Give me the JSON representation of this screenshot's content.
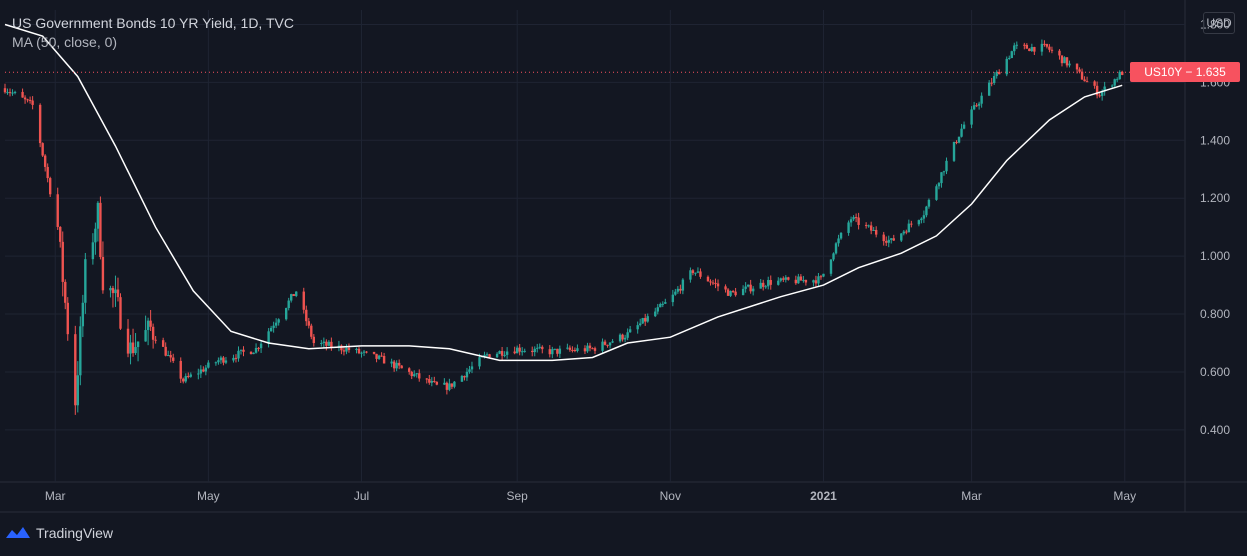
{
  "header": {
    "title": "US Government Bonds 10 YR Yield, 1D, TVC",
    "indicator": "MA (50, close, 0)",
    "currency": "USD"
  },
  "last_price_label": "US10Y − 1.635",
  "brand": "TradingView",
  "colors": {
    "background": "#131722",
    "up": "#26a69a",
    "down": "#ef5350",
    "ma": "#ffffff",
    "grid": "#1f2433",
    "price_line": "#f7525f"
  },
  "chart_data": {
    "type": "candlestick",
    "title": "US Government Bonds 10 YR Yield, 1D, TVC",
    "y_ticks": [
      "1.800",
      "1.600",
      "1.400",
      "1.200",
      "1.000",
      "0.800",
      "0.600",
      "0.400"
    ],
    "ylim": [
      0.22,
      1.85
    ],
    "x_ticks": [
      "Mar",
      "May",
      "Jul",
      "Sep",
      "Nov",
      "2021",
      "Mar",
      "May"
    ],
    "grid": true,
    "last_value": 1.635,
    "close_points": [
      [
        "2020-02-10",
        1.58
      ],
      [
        "2020-02-21",
        1.52
      ],
      [
        "2020-03-02",
        1.1
      ],
      [
        "2020-03-06",
        0.75
      ],
      [
        "2020-03-09",
        0.5
      ],
      [
        "2020-03-13",
        0.95
      ],
      [
        "2020-03-18",
        1.15
      ],
      [
        "2020-03-20",
        0.92
      ],
      [
        "2020-03-25",
        0.85
      ],
      [
        "2020-03-31",
        0.68
      ],
      [
        "2020-04-08",
        0.75
      ],
      [
        "2020-04-21",
        0.57
      ],
      [
        "2020-05-05",
        0.64
      ],
      [
        "2020-05-20",
        0.68
      ],
      [
        "2020-06-05",
        0.88
      ],
      [
        "2020-06-12",
        0.7
      ],
      [
        "2020-06-25",
        0.68
      ],
      [
        "2020-07-10",
        0.64
      ],
      [
        "2020-07-31",
        0.55
      ],
      [
        "2020-08-05",
        0.55
      ],
      [
        "2020-08-20",
        0.66
      ],
      [
        "2020-09-01",
        0.68
      ],
      [
        "2020-09-15",
        0.67
      ],
      [
        "2020-10-01",
        0.68
      ],
      [
        "2020-10-15",
        0.73
      ],
      [
        "2020-11-01",
        0.85
      ],
      [
        "2020-11-10",
        0.95
      ],
      [
        "2020-11-25",
        0.87
      ],
      [
        "2020-12-10",
        0.91
      ],
      [
        "2020-12-31",
        0.92
      ],
      [
        "2021-01-06",
        1.04
      ],
      [
        "2021-01-12",
        1.13
      ],
      [
        "2021-01-28",
        1.05
      ],
      [
        "2021-02-10",
        1.15
      ],
      [
        "2021-02-25",
        1.44
      ],
      [
        "2021-03-05",
        1.55
      ],
      [
        "2021-03-18",
        1.72
      ],
      [
        "2021-03-31",
        1.72
      ],
      [
        "2021-04-09",
        1.66
      ],
      [
        "2021-04-21",
        1.56
      ],
      [
        "2021-04-30",
        1.635
      ]
    ],
    "ma_points": [
      [
        "2020-02-10",
        1.8
      ],
      [
        "2020-02-25",
        1.76
      ],
      [
        "2020-03-10",
        1.62
      ],
      [
        "2020-03-25",
        1.38
      ],
      [
        "2020-04-10",
        1.1
      ],
      [
        "2020-04-25",
        0.88
      ],
      [
        "2020-05-10",
        0.74
      ],
      [
        "2020-05-25",
        0.7
      ],
      [
        "2020-06-10",
        0.68
      ],
      [
        "2020-07-01",
        0.69
      ],
      [
        "2020-07-20",
        0.69
      ],
      [
        "2020-08-05",
        0.68
      ],
      [
        "2020-08-25",
        0.64
      ],
      [
        "2020-09-15",
        0.64
      ],
      [
        "2020-10-01",
        0.65
      ],
      [
        "2020-10-15",
        0.7
      ],
      [
        "2020-11-01",
        0.72
      ],
      [
        "2020-11-20",
        0.79
      ],
      [
        "2020-12-15",
        0.86
      ],
      [
        "2021-01-01",
        0.9
      ],
      [
        "2021-01-15",
        0.96
      ],
      [
        "2021-02-01",
        1.01
      ],
      [
        "2021-02-15",
        1.07
      ],
      [
        "2021-03-01",
        1.18
      ],
      [
        "2021-03-15",
        1.33
      ],
      [
        "2021-04-01",
        1.47
      ],
      [
        "2021-04-15",
        1.55
      ],
      [
        "2021-04-30",
        1.59
      ]
    ]
  }
}
